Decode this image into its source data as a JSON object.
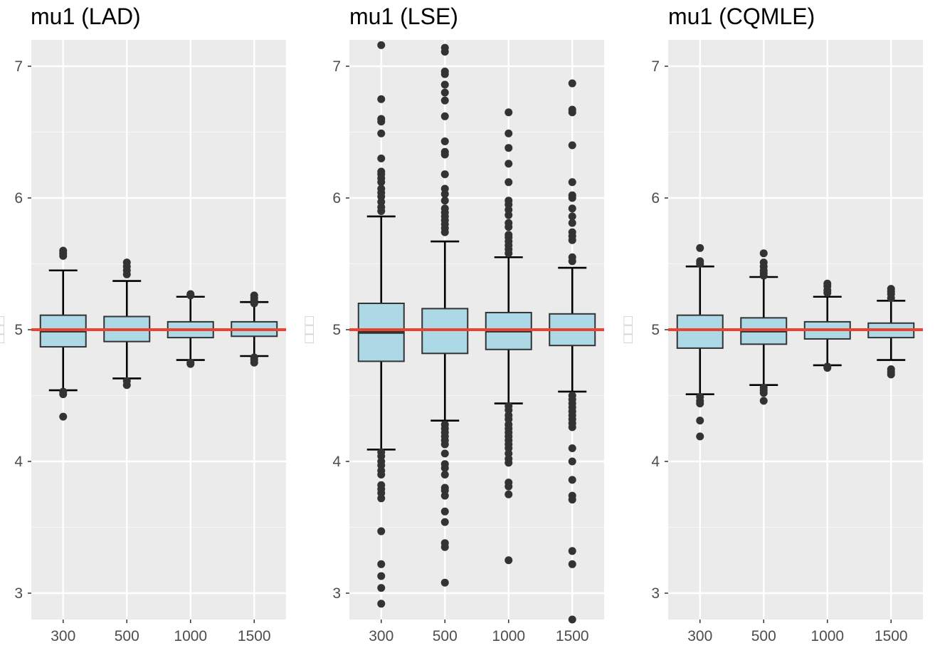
{
  "chart_data": [
    {
      "type": "boxplot",
      "title": "mu1 (LAD)",
      "ylabel": "□□□",
      "xlabel": "",
      "categories": [
        "300",
        "500",
        "1000",
        "1500"
      ],
      "yticks": [
        3,
        4,
        5,
        6,
        7
      ],
      "ylim": [
        2.8,
        7.2
      ],
      "reference_line": 5,
      "boxes": [
        {
          "q1": 4.87,
          "median": 4.99,
          "q3": 5.11,
          "whisker_low": 4.54,
          "whisker_high": 5.45,
          "outliers": [
            5.6,
            5.58,
            5.56,
            4.53,
            4.51,
            4.34
          ]
        },
        {
          "q1": 4.91,
          "median": 5.0,
          "q3": 5.1,
          "whisker_low": 4.63,
          "whisker_high": 5.37,
          "outliers": [
            5.51,
            5.48,
            5.45,
            5.42,
            4.61,
            4.58
          ]
        },
        {
          "q1": 4.94,
          "median": 5.0,
          "q3": 5.06,
          "whisker_low": 4.77,
          "whisker_high": 5.25,
          "outliers": [
            5.27,
            5.26,
            4.75,
            4.74
          ]
        },
        {
          "q1": 4.95,
          "median": 5.0,
          "q3": 5.06,
          "whisker_low": 4.8,
          "whisker_high": 5.21,
          "outliers": [
            5.26,
            5.24,
            5.22,
            5.2,
            4.79,
            4.77,
            4.75
          ]
        }
      ]
    },
    {
      "type": "boxplot",
      "title": "mu1 (LSE)",
      "ylabel": "□□□",
      "xlabel": "",
      "categories": [
        "300",
        "500",
        "1000",
        "1500"
      ],
      "yticks": [
        3,
        4,
        5,
        6,
        7
      ],
      "ylim": [
        2.8,
        7.2
      ],
      "reference_line": 5,
      "boxes": [
        {
          "q1": 4.76,
          "median": 4.98,
          "q3": 5.2,
          "whisker_low": 4.09,
          "whisker_high": 5.86,
          "outliers": [
            7.16,
            6.75,
            6.6,
            6.58,
            6.49,
            6.3,
            6.2,
            6.18,
            6.15,
            6.12,
            6.07,
            6.04,
            6.01,
            5.97,
            5.93,
            5.9,
            4.07,
            4.04,
            4.0,
            3.97,
            3.93,
            3.9,
            3.82,
            3.79,
            3.76,
            3.72,
            3.47,
            3.22,
            3.13,
            3.04,
            2.92
          ]
        },
        {
          "q1": 4.82,
          "median": 5.0,
          "q3": 5.16,
          "whisker_low": 4.31,
          "whisker_high": 5.67,
          "outliers": [
            7.14,
            7.11,
            6.96,
            6.94,
            6.86,
            6.8,
            6.74,
            6.62,
            6.43,
            6.35,
            6.33,
            6.18,
            6.07,
            6.03,
            5.98,
            5.92,
            5.89,
            5.86,
            5.83,
            5.8,
            5.77,
            5.74,
            4.28,
            4.25,
            4.22,
            4.19,
            4.16,
            4.13,
            4.06,
            3.98,
            3.95,
            3.9,
            3.8,
            3.78,
            3.74,
            3.62,
            3.54,
            3.38,
            3.35,
            3.08
          ]
        },
        {
          "q1": 4.85,
          "median": 4.99,
          "q3": 5.13,
          "whisker_low": 4.44,
          "whisker_high": 5.55,
          "outliers": [
            6.65,
            6.49,
            6.38,
            6.26,
            6.12,
            5.98,
            5.95,
            5.91,
            5.87,
            5.81,
            5.78,
            5.72,
            5.7,
            5.67,
            5.64,
            5.61,
            5.58,
            4.42,
            4.39,
            4.35,
            4.32,
            4.28,
            4.25,
            4.22,
            4.19,
            4.16,
            4.13,
            4.1,
            4.06,
            4.02,
            3.99,
            3.84,
            3.81,
            3.75,
            3.25
          ]
        },
        {
          "q1": 4.88,
          "median": 5.0,
          "q3": 5.12,
          "whisker_low": 4.53,
          "whisker_high": 5.47,
          "outliers": [
            6.87,
            6.67,
            6.65,
            6.4,
            6.12,
            6.02,
            6.0,
            5.92,
            5.86,
            5.81,
            5.74,
            5.71,
            5.68,
            5.55,
            5.52,
            4.5,
            4.47,
            4.44,
            4.41,
            4.38,
            4.35,
            4.32,
            4.29,
            4.26,
            4.1,
            4.0,
            3.86,
            3.74,
            3.71,
            3.32,
            3.22,
            2.8
          ]
        }
      ]
    },
    {
      "type": "boxplot",
      "title": "mu1 (CQMLE)",
      "ylabel": "□□□",
      "xlabel": "",
      "categories": [
        "300",
        "500",
        "1000",
        "1500"
      ],
      "yticks": [
        3,
        4,
        5,
        6,
        7
      ],
      "ylim": [
        2.8,
        7.2
      ],
      "reference_line": 5,
      "boxes": [
        {
          "q1": 4.86,
          "median": 5.0,
          "q3": 5.11,
          "whisker_low": 4.51,
          "whisker_high": 5.48,
          "outliers": [
            5.62,
            5.52,
            5.5,
            4.49,
            4.46,
            4.44,
            4.31,
            4.19
          ]
        },
        {
          "q1": 4.89,
          "median": 4.99,
          "q3": 5.09,
          "whisker_low": 4.58,
          "whisker_high": 5.4,
          "outliers": [
            5.58,
            5.51,
            5.48,
            5.45,
            5.43,
            5.41,
            4.56,
            4.54,
            4.52,
            4.46
          ]
        },
        {
          "q1": 4.93,
          "median": 5.0,
          "q3": 5.06,
          "whisker_low": 4.73,
          "whisker_high": 5.25,
          "outliers": [
            5.35,
            5.33,
            5.3,
            5.28,
            4.72,
            4.71
          ]
        },
        {
          "q1": 4.94,
          "median": 5.0,
          "q3": 5.05,
          "whisker_low": 4.77,
          "whisker_high": 5.22,
          "outliers": [
            5.31,
            5.29,
            5.27,
            5.24,
            4.7,
            4.68,
            4.66
          ]
        }
      ]
    }
  ],
  "colors": {
    "panel_background": "#ebebeb",
    "grid_major": "#ffffff",
    "grid_minor": "#f5f5f5",
    "box_fill": "#add8e6",
    "box_stroke": "#333333",
    "whisker": "#000000",
    "outlier": "#333333",
    "reference_line": "#e8442f",
    "tick_text": "#4d4d4d",
    "title_text": "#000000"
  }
}
